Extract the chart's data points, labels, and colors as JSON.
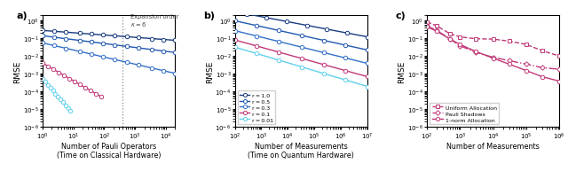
{
  "panel_a": {
    "xlabel": "Number of Pauli Operators\n(Time on Classical Hardware)",
    "ylabel": "RMSE",
    "xlim": [
      1,
      20000
    ],
    "ylim": [
      1e-06,
      2
    ],
    "vline_x": 400,
    "annotation": "Expansion order\n$\\kappa = 6$",
    "lines": [
      {
        "c": 0.28,
        "slope": -0.13,
        "color": "#1a3c80",
        "xmin": 1,
        "xmax": 20000
      },
      {
        "c": 0.14,
        "slope": -0.22,
        "color": "#2258b0",
        "xmin": 1,
        "xmax": 20000
      },
      {
        "c": 0.055,
        "slope": -0.4,
        "color": "#3370c8",
        "xmin": 1,
        "xmax": 20000
      },
      {
        "c": 0.004,
        "slope": -1.0,
        "color": "#c03878",
        "xmin": 1,
        "xmax": 80
      },
      {
        "c": 0.0005,
        "slope": -2.0,
        "color": "#60d0ee",
        "xmin": 1,
        "xmax": 8
      }
    ]
  },
  "panel_b": {
    "xlabel": "Number of Measurements\n(Time on Quantum Hardware)",
    "ylabel": "RMSE",
    "xlim": [
      100,
      10000000.0
    ],
    "ylim": [
      1e-06,
      2
    ],
    "lines": [
      {
        "c": 12.0,
        "slope": -0.285,
        "color": "#1a3c80",
        "label": "r = 1.0"
      },
      {
        "c": 4.5,
        "slope": -0.33,
        "color": "#2258b0",
        "label": "r = 0.5"
      },
      {
        "c": 1.5,
        "slope": -0.37,
        "color": "#3370c8",
        "label": "r = 0.3"
      },
      {
        "c": 0.55,
        "slope": -0.415,
        "color": "#c03878",
        "label": "r = 0.1"
      },
      {
        "c": 0.25,
        "slope": -0.445,
        "color": "#60d0ee",
        "label": "r = 0.01"
      }
    ]
  },
  "panel_c": {
    "xlabel": "Number of Measurements",
    "ylabel": "RMSE",
    "xlim": [
      100,
      1000000.0
    ],
    "ylim": [
      1e-06,
      2
    ],
    "color": "#c03878",
    "uniform_x": [
      100,
      200,
      500,
      1000,
      3000,
      10000,
      30000,
      100000,
      300000,
      1000000
    ],
    "uniform_y": [
      0.85,
      0.5,
      0.18,
      0.12,
      0.095,
      0.09,
      0.07,
      0.045,
      0.02,
      0.01
    ],
    "pauli_x": [
      100,
      200,
      500,
      1000,
      3000,
      10000,
      30000,
      100000,
      300000,
      1000000
    ],
    "pauli_y": [
      0.5,
      0.28,
      0.09,
      0.038,
      0.016,
      0.0085,
      0.0055,
      0.0035,
      0.0022,
      0.0018
    ],
    "norm1_x": [
      100,
      200,
      500,
      1000,
      3000,
      10000,
      30000,
      100000,
      300000,
      1000000
    ],
    "norm1_y": [
      0.45,
      0.25,
      0.09,
      0.045,
      0.018,
      0.0075,
      0.0035,
      0.0015,
      0.00068,
      0.00038
    ]
  }
}
